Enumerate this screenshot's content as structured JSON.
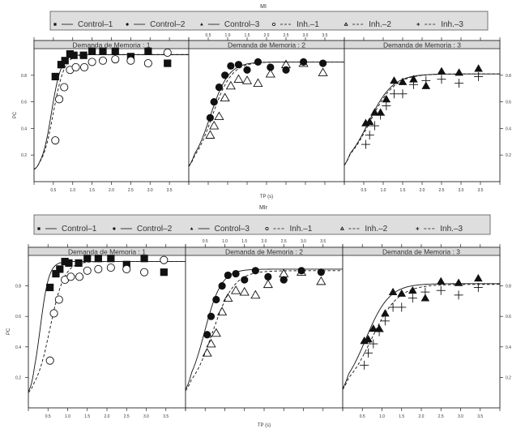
{
  "chart_data": [
    {
      "type": "scatter",
      "title": "MI",
      "xlabel": "TP (s)",
      "ylabel": "PC",
      "xlim": [
        0,
        4
      ],
      "ylim": [
        0,
        1
      ],
      "x_ticks": [
        "0.5",
        "1.0",
        "1.5",
        "2.0",
        "2.5",
        "3.0",
        "3.5"
      ],
      "y_ticks": [
        "0.2",
        "0.4",
        "0.6",
        "0.8"
      ],
      "legend": [
        "Control-1",
        "Control-2",
        "Control-3",
        "Inh.-1",
        "Inh.-2",
        "Inh.-3"
      ],
      "panels": [
        {
          "strip": "Demanda de Memoria   : 1",
          "series": [
            {
              "name": "Control-1",
              "marker": "square-filled",
              "x": [
                0.55,
                0.7,
                0.8,
                0.93,
                1.03,
                1.28,
                1.5,
                1.78,
                2.1,
                2.5,
                2.95,
                3.45
              ],
              "y": [
                0.79,
                0.88,
                0.91,
                0.96,
                0.95,
                0.95,
                0.98,
                0.98,
                0.98,
                0.94,
                0.98,
                0.89
              ]
            },
            {
              "name": "Inh.-1",
              "marker": "circle-open",
              "x": [
                0.55,
                0.65,
                0.78,
                0.93,
                1.08,
                1.3,
                1.5,
                1.78,
                2.1,
                2.5,
                2.95,
                3.45
              ],
              "y": [
                0.31,
                0.62,
                0.71,
                0.84,
                0.86,
                0.86,
                0.9,
                0.91,
                0.92,
                0.91,
                0.89,
                0.97
              ]
            }
          ],
          "curves": [
            {
              "name": "Control-1",
              "style": "solid",
              "asym": 0.955,
              "floor": 0.08,
              "x50": 0.45,
              "k": 8
            },
            {
              "name": "Inh.-1",
              "style": "dashed",
              "asym": 0.955,
              "floor": 0.08,
              "x50": 0.5,
              "k": 7
            }
          ]
        },
        {
          "strip": "Demanda de Memoria   : 2",
          "series": [
            {
              "name": "Control-2",
              "marker": "circle-filled",
              "x": [
                0.55,
                0.65,
                0.78,
                0.93,
                1.08,
                1.28,
                1.5,
                1.78,
                2.1,
                2.5,
                2.95,
                3.45
              ],
              "y": [
                0.48,
                0.6,
                0.71,
                0.8,
                0.87,
                0.88,
                0.84,
                0.9,
                0.86,
                0.84,
                0.9,
                0.89
              ]
            },
            {
              "name": "Inh.-2",
              "marker": "triangle-open",
              "x": [
                0.55,
                0.65,
                0.78,
                0.93,
                1.08,
                1.28,
                1.5,
                1.78,
                2.1,
                2.5,
                2.95,
                3.45
              ],
              "y": [
                0.35,
                0.42,
                0.49,
                0.63,
                0.72,
                0.77,
                0.76,
                0.74,
                0.81,
                0.88,
                0.89,
                0.82
              ]
            }
          ],
          "curves": [
            {
              "name": "Control-2",
              "style": "solid",
              "asym": 0.9,
              "floor": 0.08,
              "x50": 0.55,
              "k": 4.2
            },
            {
              "name": "Inh.-2",
              "style": "dashed",
              "asym": 0.9,
              "floor": 0.08,
              "x50": 0.6,
              "k": 4.0
            }
          ]
        },
        {
          "strip": "Demanda de Memoria   : 3",
          "series": [
            {
              "name": "Control-3",
              "marker": "triangle-filled",
              "x": [
                0.55,
                0.65,
                0.78,
                0.93,
                1.08,
                1.28,
                1.5,
                1.78,
                2.1,
                2.5,
                2.95,
                3.45
              ],
              "y": [
                0.44,
                0.45,
                0.52,
                0.52,
                0.62,
                0.76,
                0.75,
                0.77,
                0.72,
                0.83,
                0.82,
                0.85
              ]
            },
            {
              "name": "Inh.-3",
              "marker": "plus",
              "x": [
                0.55,
                0.65,
                0.78,
                0.93,
                1.08,
                1.28,
                1.5,
                1.78,
                2.1,
                2.5,
                2.95,
                3.45
              ],
              "y": [
                0.28,
                0.35,
                0.42,
                0.5,
                0.57,
                0.66,
                0.66,
                0.73,
                0.76,
                0.77,
                0.74,
                0.79
              ]
            }
          ],
          "curves": [
            {
              "name": "Control-3",
              "style": "solid",
              "asym": 0.81,
              "floor": 0.08,
              "x50": 0.62,
              "k": 3.2
            },
            {
              "name": "Inh.-3",
              "style": "dashed",
              "asym": 0.81,
              "floor": 0.08,
              "x50": 0.65,
              "k": 3.1
            }
          ]
        }
      ]
    },
    {
      "type": "scatter",
      "title": "MIr",
      "xlabel": "TP (s)",
      "ylabel": "PC",
      "xlim": [
        0,
        4
      ],
      "ylim": [
        0,
        1
      ],
      "x_ticks": [
        "0.5",
        "1.0",
        "1.5",
        "2.0",
        "2.5",
        "3.0",
        "3.5"
      ],
      "y_ticks": [
        "0.2",
        "0.4",
        "0.6",
        "0.8"
      ],
      "legend": [
        "Control-1",
        "Control-2",
        "Control-3",
        "Inh.-1",
        "Inh.-2",
        "Inh.-3"
      ],
      "panels": [
        {
          "strip": "Demanda de Memoria   : 1",
          "series": [
            {
              "name": "Control-1",
              "marker": "square-filled",
              "x": [
                0.55,
                0.7,
                0.8,
                0.93,
                1.03,
                1.28,
                1.5,
                1.78,
                2.1,
                2.5,
                2.95,
                3.45
              ],
              "y": [
                0.79,
                0.88,
                0.91,
                0.96,
                0.95,
                0.95,
                0.98,
                0.98,
                0.98,
                0.94,
                0.98,
                0.89
              ]
            },
            {
              "name": "Inh.-1",
              "marker": "circle-open",
              "x": [
                0.55,
                0.65,
                0.78,
                0.93,
                1.08,
                1.3,
                1.5,
                1.78,
                2.1,
                2.5,
                2.95,
                3.45
              ],
              "y": [
                0.31,
                0.62,
                0.71,
                0.84,
                0.86,
                0.86,
                0.9,
                0.91,
                0.92,
                0.91,
                0.89,
                0.97
              ]
            }
          ],
          "curves": [
            {
              "name": "Control-1",
              "style": "solid",
              "asym": 0.96,
              "floor": 0.08,
              "x50": 0.3,
              "k": 9
            },
            {
              "name": "Inh.-1",
              "style": "dashed",
              "asym": 0.96,
              "floor": 0.08,
              "x50": 0.55,
              "k": 5.5
            }
          ]
        },
        {
          "strip": "Demanda de Memoria   : 2",
          "series": [
            {
              "name": "Control-2",
              "marker": "circle-filled",
              "x": [
                0.55,
                0.65,
                0.78,
                0.93,
                1.08,
                1.28,
                1.5,
                1.78,
                2.1,
                2.5,
                2.95,
                3.45
              ],
              "y": [
                0.48,
                0.6,
                0.71,
                0.8,
                0.87,
                0.88,
                0.84,
                0.9,
                0.86,
                0.84,
                0.9,
                0.89
              ]
            },
            {
              "name": "Inh.-2",
              "marker": "triangle-open",
              "x": [
                0.55,
                0.65,
                0.78,
                0.93,
                1.08,
                1.28,
                1.5,
                1.78,
                2.1,
                2.5,
                2.95,
                3.45
              ],
              "y": [
                0.36,
                0.42,
                0.49,
                0.63,
                0.72,
                0.77,
                0.76,
                0.74,
                0.81,
                0.88,
                0.89,
                0.83
              ]
            }
          ],
          "curves": [
            {
              "name": "Control-2",
              "style": "solid",
              "asym": 0.91,
              "floor": 0.08,
              "x50": 0.48,
              "k": 4.6
            },
            {
              "name": "Inh.-2",
              "style": "dashed",
              "asym": 0.9,
              "floor": 0.08,
              "x50": 0.68,
              "k": 3.6
            }
          ]
        },
        {
          "strip": "Demanda de Memoria   : 3",
          "series": [
            {
              "name": "Control-3",
              "marker": "triangle-filled",
              "x": [
                0.55,
                0.65,
                0.78,
                0.93,
                1.08,
                1.28,
                1.5,
                1.78,
                2.1,
                2.5,
                2.95,
                3.45
              ],
              "y": [
                0.44,
                0.45,
                0.52,
                0.52,
                0.62,
                0.76,
                0.75,
                0.77,
                0.72,
                0.83,
                0.82,
                0.85
              ]
            },
            {
              "name": "Inh.-3",
              "marker": "plus",
              "x": [
                0.55,
                0.65,
                0.78,
                0.93,
                1.08,
                1.28,
                1.5,
                1.78,
                2.1,
                2.5,
                2.95,
                3.45
              ],
              "y": [
                0.28,
                0.36,
                0.42,
                0.5,
                0.57,
                0.66,
                0.66,
                0.72,
                0.76,
                0.77,
                0.74,
                0.79
              ]
            }
          ],
          "curves": [
            {
              "name": "Control-3",
              "style": "solid",
              "asym": 0.815,
              "floor": 0.08,
              "x50": 0.58,
              "k": 3.3
            },
            {
              "name": "Inh.-3",
              "style": "dashed",
              "asym": 0.81,
              "floor": 0.08,
              "x50": 0.72,
              "k": 2.9
            }
          ]
        }
      ]
    }
  ],
  "legend_entries": [
    {
      "label": "Control-1",
      "marker": "square-filled",
      "line": "solid"
    },
    {
      "label": "Control-2",
      "marker": "circle-filled",
      "line": "solid"
    },
    {
      "label": "Control-3",
      "marker": "triangle-filled",
      "line": "solid"
    },
    {
      "label": "Inh.-1",
      "marker": "circle-open",
      "line": "dashed"
    },
    {
      "label": "Inh.-2",
      "marker": "triangle-open",
      "line": "dashed"
    },
    {
      "label": "Inh.-3",
      "marker": "plus",
      "line": "dashed"
    }
  ],
  "colors": {
    "ink": "#111111",
    "strip": "#d9d9d9",
    "legend_bg": "#dedede",
    "axis": "#222222",
    "text": "#333333"
  }
}
